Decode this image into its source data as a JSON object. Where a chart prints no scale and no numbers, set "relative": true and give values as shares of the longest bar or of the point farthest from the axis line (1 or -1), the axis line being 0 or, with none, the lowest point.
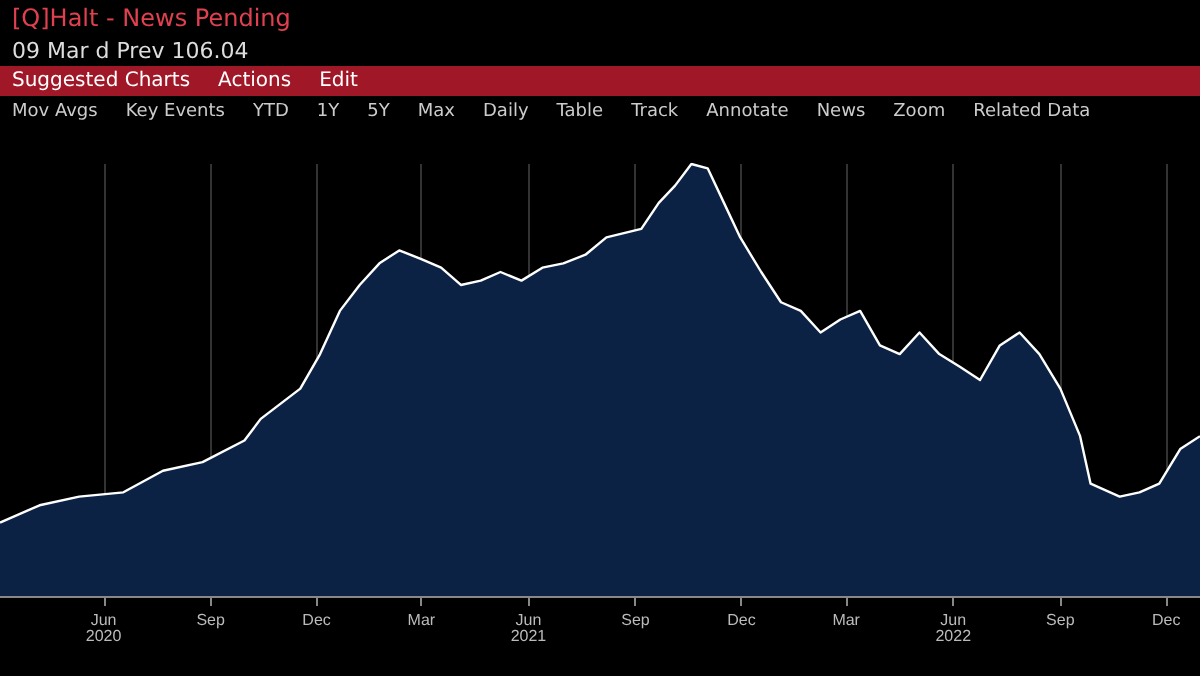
{
  "chart_data": {
    "type": "area",
    "title": "[Q]Halt - News Pending",
    "subtitle": "09 Mar d Prev 106.04",
    "annotations": [
      "Suggested Charts",
      "Actions",
      "Edit",
      "Mov Avgs",
      "Key Events",
      "YTD",
      "1Y",
      "5Y",
      "Max",
      "Daily",
      "Table",
      "Track",
      "Annotate",
      "News",
      "Zoom",
      "Related Data"
    ],
    "relative": true,
    "grid": "x",
    "xlim": [
      "2020-03-04",
      "2022-12-30"
    ],
    "xticks": [
      {
        "value": "2020-06-01",
        "label": "Jun\n2020"
      },
      {
        "value": "2020-09-01",
        "label": "Sep"
      },
      {
        "value": "2020-12-01",
        "label": "Dec"
      },
      {
        "value": "2021-03-01",
        "label": "Mar"
      },
      {
        "value": "2021-06-01",
        "label": "Jun\n2021"
      },
      {
        "value": "2021-09-01",
        "label": "Sep"
      },
      {
        "value": "2021-12-01",
        "label": "Dec"
      },
      {
        "value": "2022-03-01",
        "label": "Mar"
      },
      {
        "value": "2022-06-01",
        "label": "Jun\n2022"
      },
      {
        "value": "2022-09-01",
        "label": "Sep"
      },
      {
        "value": "2022-12-01",
        "label": "Dec"
      }
    ],
    "x": [
      "2020-03-04",
      "2020-04-07",
      "2020-05-11",
      "2020-06-18",
      "2020-07-22",
      "2020-08-25",
      "2020-09-30",
      "2020-10-14",
      "2020-11-17",
      "2020-12-04",
      "2020-12-21",
      "2021-01-07",
      "2021-01-24",
      "2021-02-10",
      "2021-03-01",
      "2021-03-18",
      "2021-04-04",
      "2021-04-21",
      "2021-05-08",
      "2021-05-26",
      "2021-06-13",
      "2021-07-01",
      "2021-07-20",
      "2021-08-07",
      "2021-09-06",
      "2021-09-21",
      "2021-10-05",
      "2021-10-19",
      "2021-11-02",
      "2021-11-16",
      "2021-11-30",
      "2021-12-18",
      "2022-01-04",
      "2022-01-21",
      "2022-02-07",
      "2022-02-24",
      "2022-03-13",
      "2022-03-30",
      "2022-04-16",
      "2022-05-03",
      "2022-05-20",
      "2022-06-07",
      "2022-06-24",
      "2022-07-11",
      "2022-07-28",
      "2022-08-14",
      "2022-09-01",
      "2022-09-18",
      "2022-09-27",
      "2022-10-22",
      "2022-11-08",
      "2022-11-25",
      "2022-12-13",
      "2022-12-30"
    ],
    "series": [
      {
        "color": "#ffffff",
        "values": [
          0.17,
          0.21,
          0.23,
          0.24,
          0.29,
          0.31,
          0.36,
          0.41,
          0.48,
          0.56,
          0.66,
          0.72,
          0.77,
          0.8,
          0.78,
          0.76,
          0.72,
          0.73,
          0.75,
          0.73,
          0.76,
          0.77,
          0.79,
          0.83,
          0.85,
          0.91,
          0.95,
          1,
          0.99,
          0.91,
          0.83,
          0.75,
          0.68,
          0.66,
          0.61,
          0.64,
          0.66,
          0.58,
          0.56,
          0.61,
          0.56,
          0.53,
          0.5,
          0.58,
          0.61,
          0.56,
          0.48,
          0.37,
          0.26,
          0.23,
          0.24,
          0.26,
          0.34,
          0.37
        ]
      }
    ],
    "marker": "none",
    "line_style": "solid"
  }
}
